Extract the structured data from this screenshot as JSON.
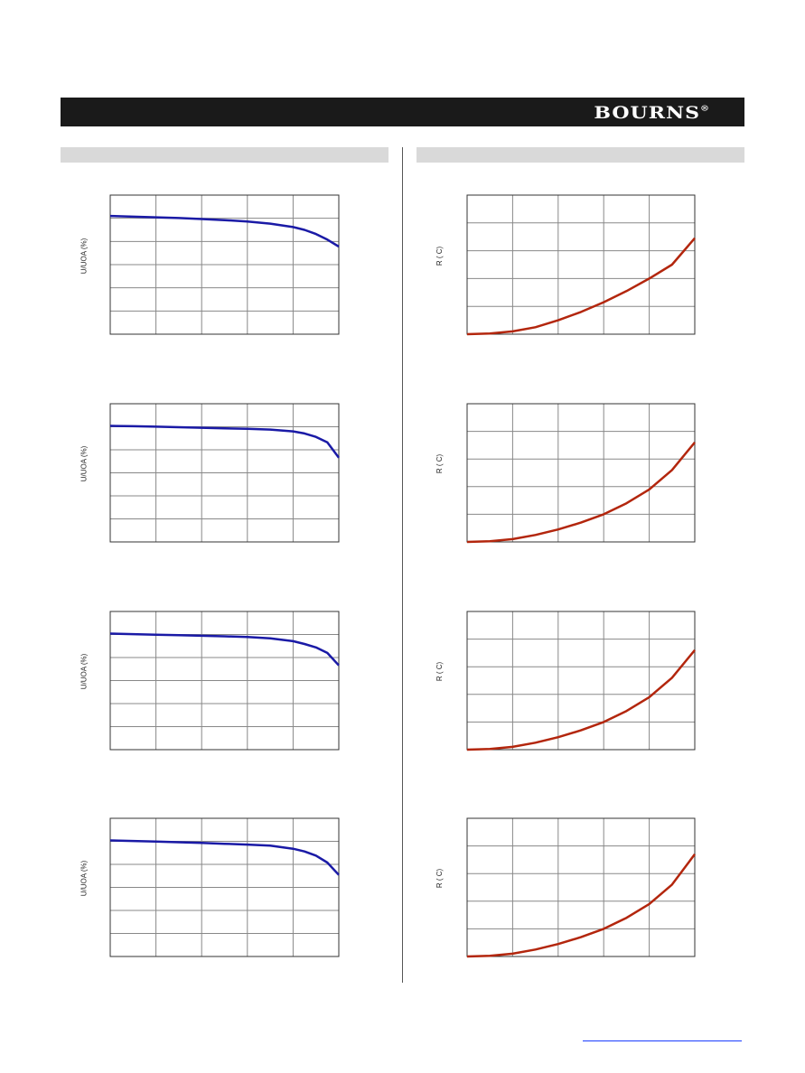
{
  "brand": {
    "logo_text": "BOURNS",
    "registered_mark": "®"
  },
  "colors": {
    "header": "#1a1a1a",
    "section_bar": "#d9d9d9",
    "blue_curve": "#1a1aa6",
    "red_curve": "#b3260d",
    "link": "#1a3cff"
  },
  "chart_data": [
    {
      "type": "line",
      "ylabel": "U/UOA (%)",
      "grid": true,
      "x": [
        0,
        0.5,
        1,
        1.5,
        2,
        2.5,
        3,
        3.5,
        4,
        4.25,
        4.5,
        4.75,
        5
      ],
      "series": [
        {
          "values": [
            85,
            84.5,
            84,
            83.5,
            82.8,
            82,
            81,
            79.5,
            77,
            75,
            72,
            68,
            63
          ]
        }
      ],
      "xlim": [
        0,
        5
      ],
      "ylim": [
        0,
        100
      ]
    },
    {
      "type": "line",
      "ylabel": "U/UOA (%)",
      "grid": true,
      "x": [
        0,
        0.5,
        1,
        1.5,
        2,
        2.5,
        3,
        3.5,
        4,
        4.25,
        4.5,
        4.75,
        5
      ],
      "series": [
        {
          "values": [
            84,
            83.7,
            83.4,
            83,
            82.6,
            82.2,
            81.8,
            81.3,
            80,
            78.5,
            76,
            72,
            61
          ]
        }
      ],
      "xlim": [
        0,
        5
      ],
      "ylim": [
        0,
        100
      ]
    },
    {
      "type": "line",
      "ylabel": "U/UOA (%)",
      "grid": true,
      "x": [
        0,
        0.5,
        1,
        1.5,
        2,
        2.5,
        3,
        3.5,
        4,
        4.25,
        4.5,
        4.75,
        5
      ],
      "series": [
        {
          "values": [
            84,
            83.6,
            83.2,
            82.8,
            82.4,
            82,
            81.5,
            80.5,
            78.5,
            76.5,
            74,
            70,
            61
          ]
        }
      ],
      "xlim": [
        0,
        5
      ],
      "ylim": [
        0,
        100
      ]
    },
    {
      "type": "line",
      "ylabel": "U/UOA (%)",
      "grid": true,
      "x": [
        0,
        0.5,
        1,
        1.5,
        2,
        2.5,
        3,
        3.5,
        4,
        4.25,
        4.5,
        4.75,
        5
      ],
      "series": [
        {
          "values": [
            84,
            83.6,
            83.2,
            82.7,
            82.2,
            81.6,
            81,
            80.2,
            78,
            76,
            73,
            68,
            59
          ]
        }
      ],
      "xlim": [
        0,
        5
      ],
      "ylim": [
        0,
        100
      ]
    },
    {
      "type": "line",
      "ylabel": "R   ( C)",
      "grid": true,
      "x": [
        0,
        0.5,
        1,
        1.5,
        2,
        2.5,
        3,
        3.5,
        4,
        4.5,
        5
      ],
      "series": [
        {
          "values": [
            0,
            0.5,
            2,
            5,
            10,
            16,
            23,
            31,
            40,
            50,
            69
          ]
        }
      ],
      "xlim": [
        0,
        5
      ],
      "ylim": [
        0,
        100
      ]
    },
    {
      "type": "line",
      "ylabel": "R   ( C)",
      "grid": true,
      "x": [
        0,
        0.5,
        1,
        1.5,
        2,
        2.5,
        3,
        3.5,
        4,
        4.5,
        5
      ],
      "series": [
        {
          "values": [
            0,
            0.5,
            2,
            5,
            9,
            14,
            20,
            28,
            38,
            52,
            72
          ]
        }
      ],
      "xlim": [
        0,
        5
      ],
      "ylim": [
        0,
        100
      ]
    },
    {
      "type": "line",
      "ylabel": "R   ( C)",
      "grid": true,
      "x": [
        0,
        0.5,
        1,
        1.5,
        2,
        2.5,
        3,
        3.5,
        4,
        4.5,
        5
      ],
      "series": [
        {
          "values": [
            0,
            0.5,
            2,
            5,
            9,
            14,
            20,
            28,
            38,
            52,
            72
          ]
        }
      ],
      "xlim": [
        0,
        5
      ],
      "ylim": [
        0,
        100
      ]
    },
    {
      "type": "line",
      "ylabel": "R   ( C)",
      "grid": true,
      "x": [
        0,
        0.5,
        1,
        1.5,
        2,
        2.5,
        3,
        3.5,
        4,
        4.5,
        5
      ],
      "series": [
        {
          "values": [
            0,
            0.5,
            2,
            5,
            9,
            14,
            20,
            28,
            38,
            52,
            74
          ]
        }
      ],
      "xlim": [
        0,
        5
      ],
      "ylim": [
        0,
        100
      ]
    }
  ]
}
